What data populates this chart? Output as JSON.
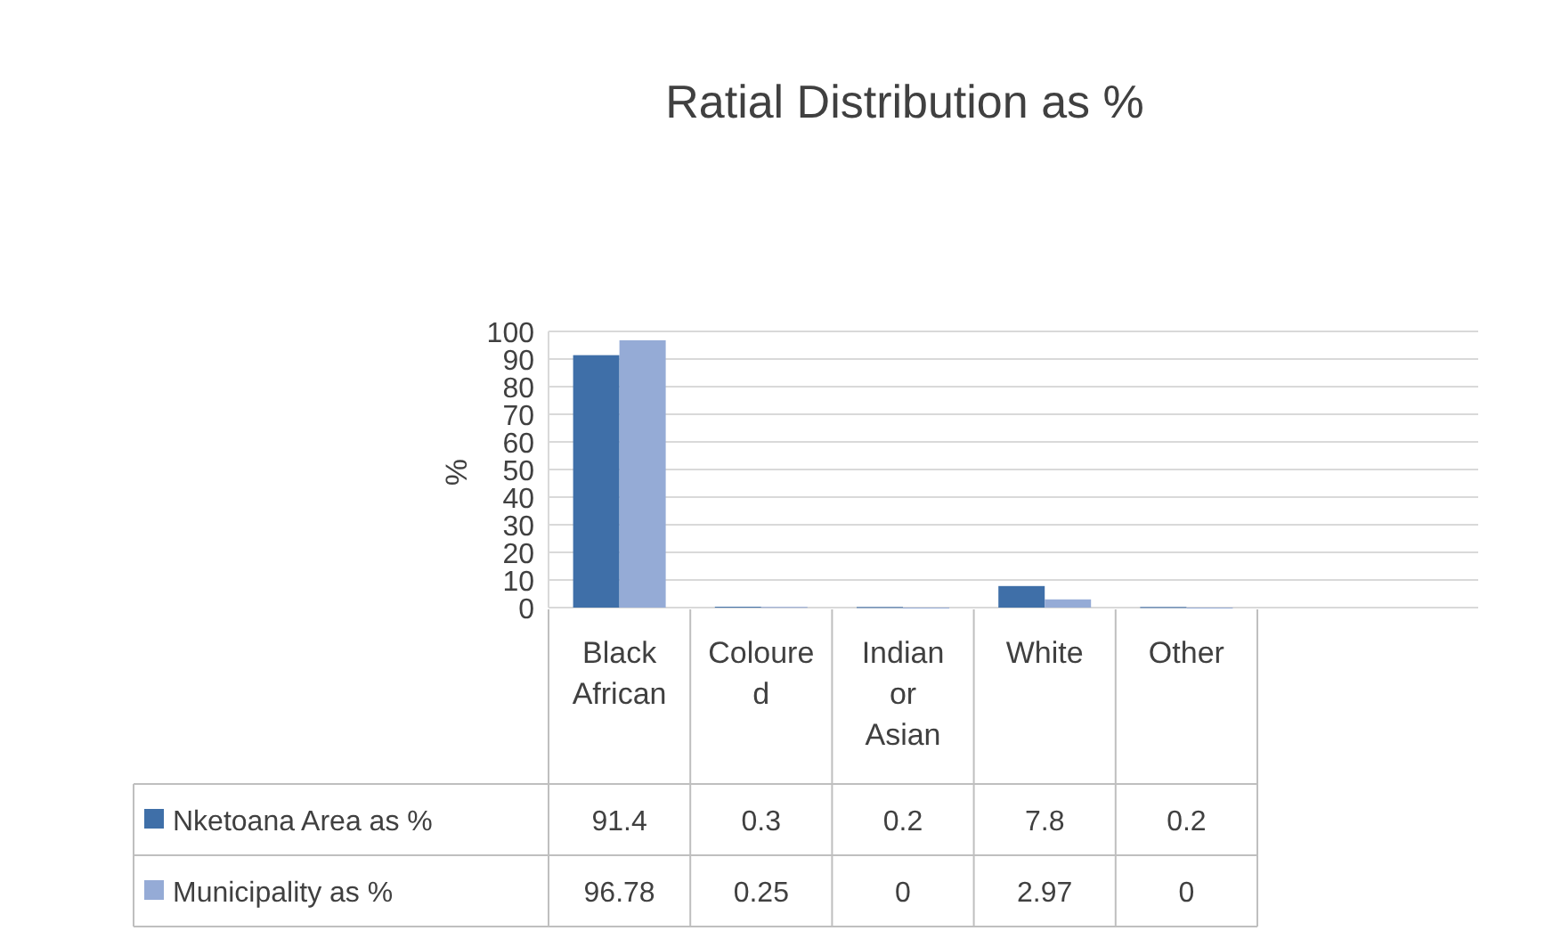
{
  "chart_data": {
    "type": "bar",
    "title": "Ratial Distribution as %",
    "ylabel": "%",
    "categories": [
      "Black African",
      "Coloured",
      "Indian or Asian",
      "White",
      "Other"
    ],
    "series": [
      {
        "name": "Nketoana Area as %",
        "color": "#3f6fa8",
        "values": [
          91.4,
          0.3,
          0.2,
          7.8,
          0.2
        ]
      },
      {
        "name": "Municipality as %",
        "color": "#95abd6",
        "values": [
          96.78,
          0.25,
          0,
          2.97,
          0
        ]
      }
    ],
    "ylim": [
      0,
      100
    ],
    "yticks": [
      0,
      10,
      20,
      30,
      40,
      50,
      60,
      70,
      80,
      90,
      100
    ],
    "grid": "y",
    "legend": "bottom",
    "data_labels": true
  }
}
